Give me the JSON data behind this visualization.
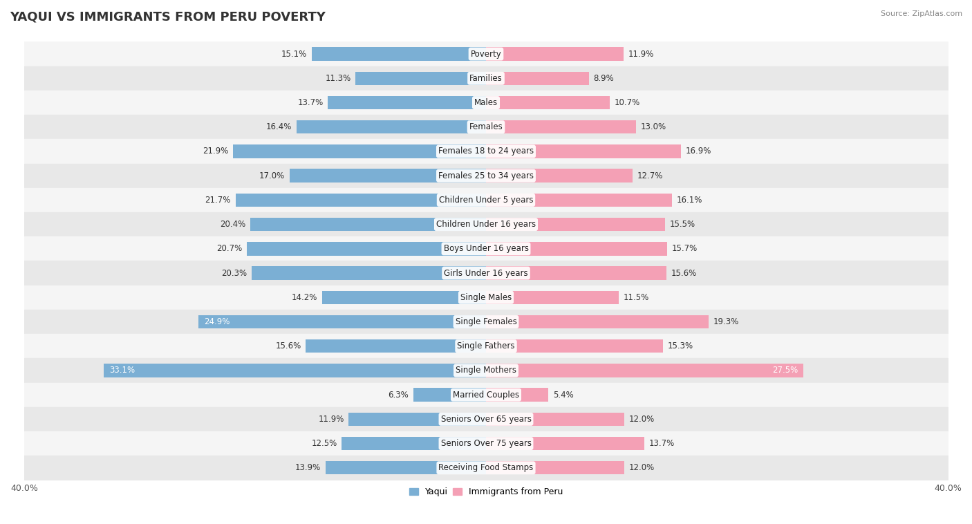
{
  "title": "YAQUI VS IMMIGRANTS FROM PERU POVERTY",
  "source": "Source: ZipAtlas.com",
  "categories": [
    "Poverty",
    "Families",
    "Males",
    "Females",
    "Females 18 to 24 years",
    "Females 25 to 34 years",
    "Children Under 5 years",
    "Children Under 16 years",
    "Boys Under 16 years",
    "Girls Under 16 years",
    "Single Males",
    "Single Females",
    "Single Fathers",
    "Single Mothers",
    "Married Couples",
    "Seniors Over 65 years",
    "Seniors Over 75 years",
    "Receiving Food Stamps"
  ],
  "yaqui": [
    15.1,
    11.3,
    13.7,
    16.4,
    21.9,
    17.0,
    21.7,
    20.4,
    20.7,
    20.3,
    14.2,
    24.9,
    15.6,
    33.1,
    6.3,
    11.9,
    12.5,
    13.9
  ],
  "peru": [
    11.9,
    8.9,
    10.7,
    13.0,
    16.9,
    12.7,
    16.1,
    15.5,
    15.7,
    15.6,
    11.5,
    19.3,
    15.3,
    27.5,
    5.4,
    12.0,
    13.7,
    12.0
  ],
  "yaqui_color": "#7bafd4",
  "peru_color": "#f4a0b5",
  "row_bg_light": "#f5f5f5",
  "row_bg_dark": "#e8e8e8",
  "axis_limit": 40.0,
  "legend_yaqui": "Yaqui",
  "legend_peru": "Immigrants from Peru",
  "title_fontsize": 13,
  "label_fontsize": 8.5,
  "value_fontsize": 8.5,
  "tick_fontsize": 9
}
